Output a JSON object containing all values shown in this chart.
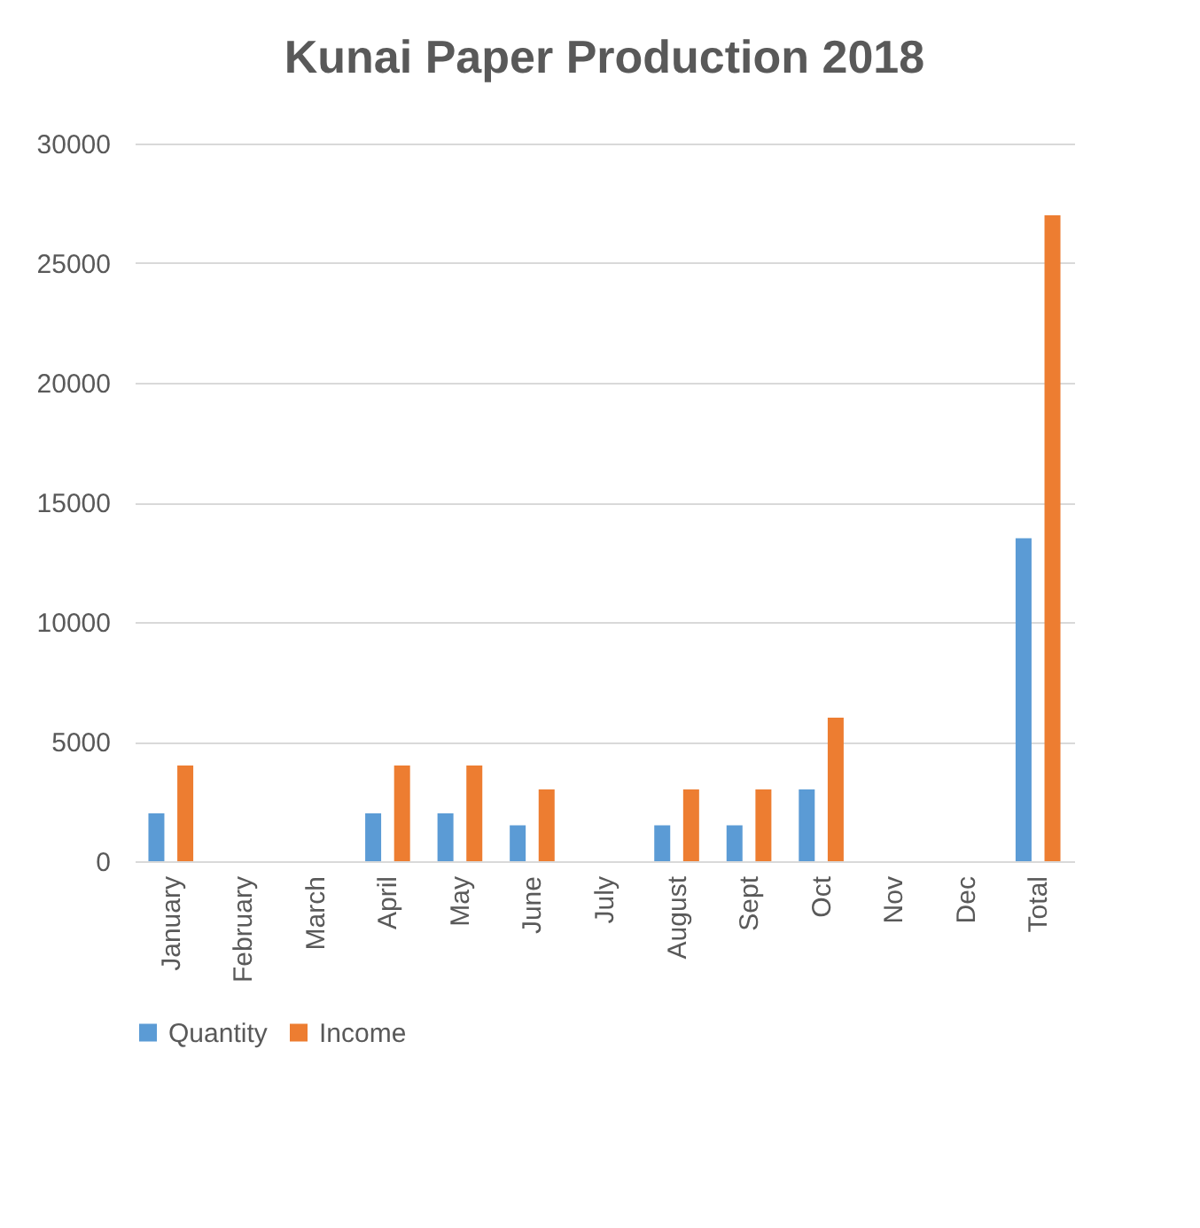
{
  "chart_data": {
    "type": "bar",
    "title": "Kunai Paper Production 2018",
    "categories": [
      "January",
      "February",
      "March",
      "April",
      "May",
      "June",
      "July",
      "August",
      "Sept",
      "Oct",
      "Nov",
      "Dec",
      "Total"
    ],
    "series": [
      {
        "name": "Quantity",
        "color": "#5b9bd5",
        "values": [
          2000,
          0,
          0,
          2000,
          2000,
          1500,
          0,
          1500,
          1500,
          3000,
          0,
          0,
          13500
        ]
      },
      {
        "name": "Income",
        "color": "#ed7d31",
        "values": [
          4000,
          0,
          0,
          4000,
          4000,
          3000,
          0,
          3000,
          3000,
          6000,
          0,
          0,
          27000
        ]
      }
    ],
    "ylim": [
      0,
      30000
    ],
    "yticks": [
      0,
      5000,
      10000,
      15000,
      20000,
      25000,
      30000
    ],
    "grid": "y",
    "legend": "bottom"
  }
}
